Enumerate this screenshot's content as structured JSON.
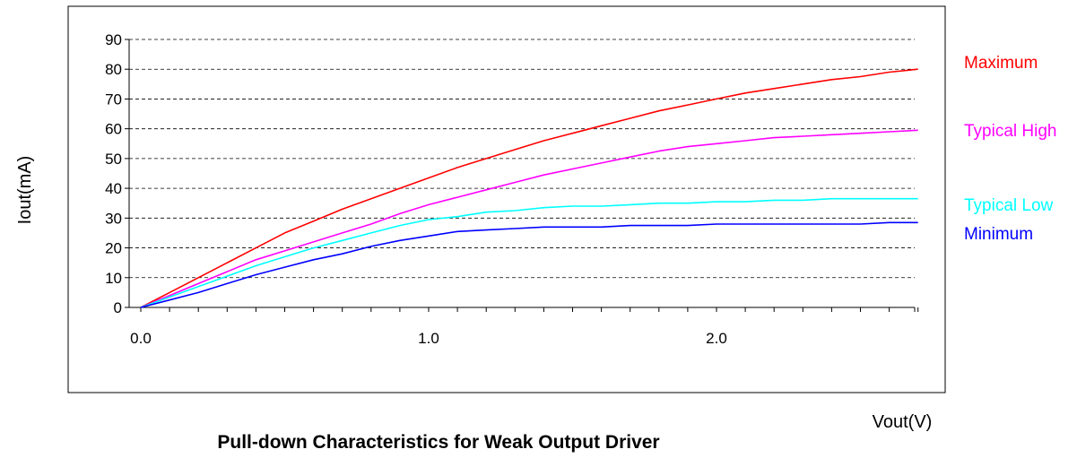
{
  "chart_data": {
    "type": "line",
    "title": "Pull-down Characteristics for Weak Output Driver",
    "xlabel": "Vout(V)",
    "ylabel": "Iout(mA)",
    "xlim": [
      0.0,
      2.7
    ],
    "ylim": [
      0,
      90
    ],
    "x_ticks": [
      0.0,
      1.0,
      2.0
    ],
    "x_tick_labels": [
      "0.0",
      "1.0",
      "2.0"
    ],
    "y_ticks": [
      0,
      10,
      20,
      30,
      40,
      50,
      60,
      70,
      80,
      90
    ],
    "y_tick_labels": [
      "0",
      "10",
      "20",
      "30",
      "40",
      "50",
      "60",
      "70",
      "80",
      "90"
    ],
    "grid": "horizontal dashed",
    "legend_position": "right",
    "x": [
      0.0,
      0.1,
      0.2,
      0.3,
      0.4,
      0.5,
      0.6,
      0.7,
      0.8,
      0.9,
      1.0,
      1.1,
      1.2,
      1.3,
      1.4,
      1.5,
      1.6,
      1.7,
      1.8,
      1.9,
      2.0,
      2.1,
      2.2,
      2.3,
      2.4,
      2.5,
      2.6,
      2.7
    ],
    "series": [
      {
        "name": "Maximum",
        "color": "#ff0000",
        "values": [
          0,
          5,
          10,
          15,
          20,
          25,
          29,
          33,
          36.5,
          40,
          43.5,
          47,
          50,
          53,
          56,
          58.5,
          61,
          63.5,
          66,
          68,
          70,
          72,
          73.5,
          75,
          76.5,
          77.5,
          79,
          80
        ]
      },
      {
        "name": "Typical High",
        "color": "#ff00ff",
        "values": [
          0,
          4,
          8,
          12,
          16,
          19,
          22,
          25,
          28,
          31.5,
          34.5,
          37,
          39.5,
          42,
          44.5,
          46.5,
          48.5,
          50.5,
          52.5,
          54,
          55,
          56,
          57,
          57.5,
          58,
          58.5,
          59,
          59.5
        ]
      },
      {
        "name": "Typical Low",
        "color": "#00ffff",
        "values": [
          0,
          3.5,
          7,
          10.5,
          14,
          17,
          20,
          22.5,
          25,
          27.5,
          29.5,
          30.5,
          32,
          32.5,
          33.5,
          34,
          34,
          34.5,
          35,
          35,
          35.5,
          35.5,
          36,
          36,
          36.5,
          36.5,
          36.5,
          36.5
        ]
      },
      {
        "name": "Minimum",
        "color": "#0000ff",
        "values": [
          0,
          2.5,
          5,
          8,
          11,
          13.5,
          16,
          18,
          20.5,
          22.5,
          24,
          25.5,
          26,
          26.5,
          27,
          27,
          27,
          27.5,
          27.5,
          27.5,
          28,
          28,
          28,
          28,
          28,
          28,
          28.5,
          28.5
        ]
      }
    ]
  }
}
